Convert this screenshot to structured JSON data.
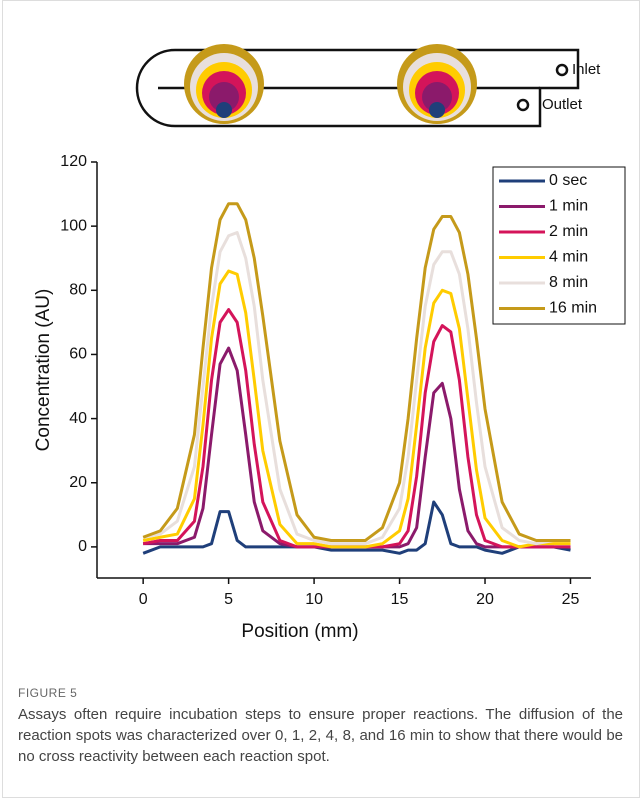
{
  "diagram": {
    "inlet": "Inlet",
    "outlet": "Outlet"
  },
  "caption": {
    "label": "FIGURE 5",
    "text": "Assays often require incubation steps to ensure proper reactions. The diffusion of the reaction spots was characterized over 0, 1, 2, 4, 8, and 16 min to show that there would be no cross reactivity between each reaction spot."
  },
  "chart_data": {
    "type": "line",
    "x_label": "Position (mm)",
    "y_label": "Concentration (AU)",
    "x": [
      0,
      1,
      2,
      3,
      3.5,
      4,
      4.5,
      5,
      5.5,
      6,
      6.5,
      7,
      8,
      9,
      10,
      11,
      12,
      13,
      14,
      15,
      15.5,
      16,
      16.5,
      17,
      17.5,
      18,
      18.5,
      19,
      19.5,
      20,
      21,
      22,
      23,
      24,
      25
    ],
    "series": [
      {
        "name": "0 sec",
        "color": "#1f3f7a",
        "values": [
          -2,
          0,
          0,
          0,
          0,
          1,
          11,
          11,
          2,
          0,
          0,
          0,
          0,
          0,
          0,
          -1,
          -1,
          -1,
          -1,
          -2,
          -1,
          -1,
          1,
          14,
          10,
          1,
          0,
          0,
          0,
          -1,
          -2,
          0,
          0,
          0,
          -1
        ]
      },
      {
        "name": "1 min",
        "color": "#8b1a6b",
        "values": [
          1,
          1,
          1,
          3,
          12,
          35,
          57,
          62,
          55,
          35,
          14,
          5,
          1,
          0,
          0,
          0,
          0,
          0,
          0,
          0,
          1,
          6,
          28,
          48,
          51,
          40,
          18,
          5,
          1,
          0,
          0,
          0,
          0,
          0,
          0
        ]
      },
      {
        "name": "2 min",
        "color": "#d4145a",
        "values": [
          1,
          2,
          2,
          8,
          25,
          52,
          70,
          74,
          70,
          55,
          32,
          14,
          2,
          0,
          0,
          0,
          0,
          0,
          0,
          1,
          5,
          22,
          48,
          64,
          69,
          67,
          52,
          28,
          10,
          2,
          0,
          0,
          0,
          0,
          0
        ]
      },
      {
        "name": "4 min",
        "color": "#ffcc00",
        "values": [
          2,
          3,
          4,
          15,
          38,
          65,
          82,
          86,
          85,
          73,
          52,
          30,
          7,
          1,
          1,
          0,
          0,
          0,
          1,
          5,
          15,
          38,
          62,
          76,
          80,
          79,
          68,
          46,
          24,
          9,
          2,
          0,
          1,
          1,
          1
        ]
      },
      {
        "name": "8 min",
        "color": "#e8dfdc",
        "values": [
          3,
          4,
          8,
          25,
          50,
          75,
          92,
          97,
          98,
          90,
          75,
          52,
          18,
          4,
          2,
          1,
          1,
          1,
          3,
          12,
          28,
          52,
          75,
          88,
          92,
          92,
          85,
          68,
          45,
          25,
          6,
          2,
          1,
          2,
          2
        ]
      },
      {
        "name": "16 min",
        "color": "#c59a1a",
        "values": [
          3,
          5,
          12,
          35,
          62,
          87,
          102,
          107,
          107,
          102,
          90,
          72,
          33,
          10,
          3,
          2,
          2,
          2,
          6,
          20,
          40,
          65,
          87,
          99,
          103,
          103,
          98,
          85,
          65,
          43,
          14,
          4,
          2,
          2,
          2
        ]
      }
    ],
    "xlim": [
      -2.7,
      26.2
    ],
    "ylim": [
      -9.7,
      120
    ],
    "xticks": [
      0,
      5,
      10,
      15,
      20,
      25
    ],
    "yticks": [
      0,
      20,
      40,
      60,
      80,
      100,
      120
    ],
    "legend": "upper right",
    "grid": false
  }
}
